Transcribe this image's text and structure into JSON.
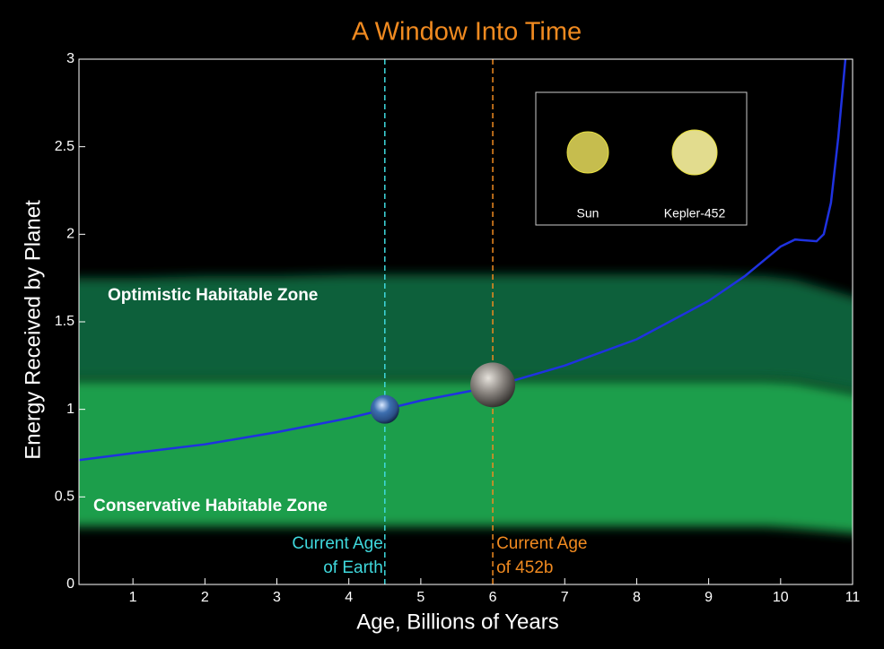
{
  "chart_data": {
    "type": "line",
    "title": "A Window Into Time",
    "xlabel": "Age, Billions of Years",
    "ylabel": "Energy Received by Planet",
    "xlim": [
      0.25,
      11
    ],
    "ylim": [
      0,
      3
    ],
    "xticks": [
      1,
      2,
      3,
      4,
      5,
      6,
      7,
      8,
      9,
      10,
      11
    ],
    "yticks": [
      0,
      0.5,
      1,
      1.5,
      2,
      2.5,
      3
    ],
    "x": [
      0.25,
      1,
      2,
      3,
      4,
      4.5,
      5,
      6,
      7,
      8,
      9,
      9.5,
      10,
      10.2,
      10.5,
      10.6,
      10.7,
      10.8,
      10.9
    ],
    "series": [
      {
        "color": "#1f32e0",
        "values": [
          0.71,
          0.75,
          0.8,
          0.87,
          0.95,
          1.0,
          1.05,
          1.13,
          1.25,
          1.4,
          1.62,
          1.76,
          1.93,
          1.97,
          1.96,
          2.0,
          2.18,
          2.55,
          3.0
        ]
      }
    ],
    "zones": [
      {
        "label": "Optimistic Habitable Zone",
        "color": "#10603a",
        "x": [
          0.25,
          1,
          2,
          3,
          4,
          5,
          6,
          7,
          8,
          9,
          9.8,
          10.2,
          11
        ],
        "lower": [
          1.17,
          1.17,
          1.17,
          1.17,
          1.17,
          1.17,
          1.17,
          1.17,
          1.17,
          1.17,
          1.17,
          1.16,
          1.07
        ],
        "upper": [
          1.75,
          1.75,
          1.76,
          1.76,
          1.77,
          1.77,
          1.77,
          1.77,
          1.77,
          1.77,
          1.76,
          1.74,
          1.6
        ]
      },
      {
        "label": "Conservative Habitable Zone",
        "color": "#1a9e4c",
        "x": [
          0.25,
          1,
          2,
          3,
          4,
          5,
          6,
          7,
          8,
          9,
          9.8,
          10.2,
          11
        ],
        "lower": [
          0.33,
          0.33,
          0.33,
          0.33,
          0.33,
          0.33,
          0.33,
          0.33,
          0.33,
          0.33,
          0.33,
          0.32,
          0.28
        ],
        "upper": [
          1.17,
          1.17,
          1.17,
          1.17,
          1.17,
          1.17,
          1.17,
          1.17,
          1.17,
          1.17,
          1.17,
          1.16,
          1.07
        ]
      }
    ],
    "markers": [
      {
        "x": 4.5,
        "y": 1.0,
        "color": "#3fd8dc",
        "label": [
          "Current Age",
          "of Earth"
        ]
      },
      {
        "x": 6.0,
        "y": 1.14,
        "color": "#f08a20",
        "label": [
          "Current Age",
          "of 452b"
        ]
      }
    ],
    "inset": [
      {
        "label": "Sun",
        "color": "#c6bd4e"
      },
      {
        "label": "Kepler-452",
        "color": "#e2dc8e"
      }
    ]
  }
}
